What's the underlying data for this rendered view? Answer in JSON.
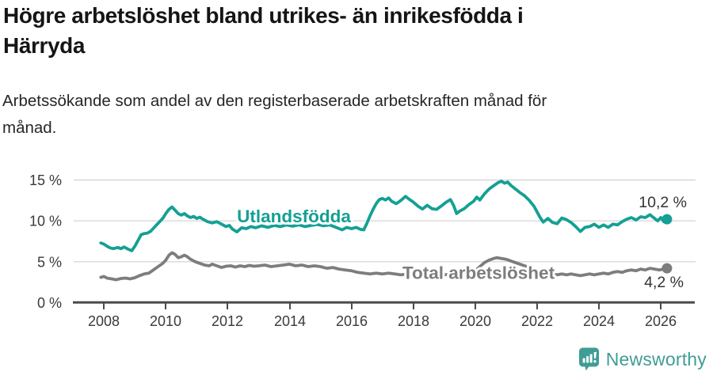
{
  "header": {
    "title": "Högre arbetslöshet bland utrikes- än inrikesfödda i\nHärryda",
    "subtitle": "Arbetssökande som andel av den registerbaserade arbetskraften månad för\nmånad."
  },
  "footer": {
    "brand": "Newsworthy",
    "brand_color": "#3f9d95",
    "logo_icon": "newsworthy-speech-bubble-bar-chart-icon"
  },
  "chart_data": {
    "type": "line",
    "title": "Högre arbetslöshet bland utrikes- än inrikesfödda i Härryda",
    "subtitle": "Arbetssökande som andel av den registerbaserade arbetskraften månad för månad.",
    "unit": "%",
    "xlabel": "",
    "ylabel": "",
    "xlim": [
      2007.0,
      2027.1
    ],
    "ylim": [
      0,
      15
    ],
    "grid": "horizontal",
    "legend_position": "inline-labels",
    "x_ticks": [
      2008,
      2010,
      2012,
      2014,
      2016,
      2018,
      2020,
      2022,
      2024,
      2026
    ],
    "x_tick_labels": [
      "2008",
      "2010",
      "2012",
      "2014",
      "2016",
      "2018",
      "2020",
      "2022",
      "2024",
      "2026"
    ],
    "y_ticks": [
      0,
      5,
      10,
      15
    ],
    "y_tick_labels": [
      "0 %",
      "5 %",
      "10 %",
      "15 %"
    ],
    "axis_color": "#4a4a4a",
    "gridline_color": "#d8d8d8",
    "series": [
      {
        "name": "Utlandsfödda",
        "color": "#14a094",
        "end_label": "10,2 %",
        "end_value": 10.2,
        "points": [
          [
            2007.9,
            7.3
          ],
          [
            2008.0,
            7.15
          ],
          [
            2008.1,
            6.9
          ],
          [
            2008.2,
            6.7
          ],
          [
            2008.3,
            6.6
          ],
          [
            2008.45,
            6.75
          ],
          [
            2008.55,
            6.6
          ],
          [
            2008.65,
            6.8
          ],
          [
            2008.8,
            6.5
          ],
          [
            2008.9,
            6.35
          ],
          [
            2009.0,
            6.9
          ],
          [
            2009.1,
            7.6
          ],
          [
            2009.2,
            8.3
          ],
          [
            2009.3,
            8.45
          ],
          [
            2009.4,
            8.5
          ],
          [
            2009.5,
            8.7
          ],
          [
            2009.6,
            9.1
          ],
          [
            2009.7,
            9.5
          ],
          [
            2009.8,
            9.9
          ],
          [
            2009.9,
            10.3
          ],
          [
            2010.0,
            10.9
          ],
          [
            2010.1,
            11.4
          ],
          [
            2010.2,
            11.7
          ],
          [
            2010.3,
            11.3
          ],
          [
            2010.4,
            10.9
          ],
          [
            2010.5,
            10.7
          ],
          [
            2010.6,
            10.9
          ],
          [
            2010.7,
            10.6
          ],
          [
            2010.8,
            10.4
          ],
          [
            2010.9,
            10.55
          ],
          [
            2011.0,
            10.3
          ],
          [
            2011.1,
            10.45
          ],
          [
            2011.2,
            10.2
          ],
          [
            2011.35,
            9.9
          ],
          [
            2011.5,
            9.75
          ],
          [
            2011.65,
            9.9
          ],
          [
            2011.8,
            9.6
          ],
          [
            2011.95,
            9.3
          ],
          [
            2012.05,
            9.45
          ],
          [
            2012.15,
            9.0
          ],
          [
            2012.3,
            8.65
          ],
          [
            2012.45,
            9.15
          ],
          [
            2012.6,
            9.05
          ],
          [
            2012.75,
            9.3
          ],
          [
            2012.9,
            9.15
          ],
          [
            2013.1,
            9.4
          ],
          [
            2013.3,
            9.2
          ],
          [
            2013.5,
            9.45
          ],
          [
            2013.7,
            9.3
          ],
          [
            2013.9,
            9.5
          ],
          [
            2014.1,
            9.35
          ],
          [
            2014.3,
            9.5
          ],
          [
            2014.5,
            9.3
          ],
          [
            2014.7,
            9.45
          ],
          [
            2014.9,
            9.55
          ],
          [
            2015.1,
            9.4
          ],
          [
            2015.3,
            9.5
          ],
          [
            2015.5,
            9.2
          ],
          [
            2015.7,
            8.9
          ],
          [
            2015.85,
            9.2
          ],
          [
            2016.0,
            9.05
          ],
          [
            2016.15,
            9.2
          ],
          [
            2016.3,
            8.95
          ],
          [
            2016.4,
            8.9
          ],
          [
            2016.5,
            9.7
          ],
          [
            2016.6,
            10.6
          ],
          [
            2016.7,
            11.4
          ],
          [
            2016.8,
            12.1
          ],
          [
            2016.9,
            12.6
          ],
          [
            2017.0,
            12.75
          ],
          [
            2017.1,
            12.55
          ],
          [
            2017.2,
            12.8
          ],
          [
            2017.3,
            12.4
          ],
          [
            2017.45,
            12.1
          ],
          [
            2017.6,
            12.5
          ],
          [
            2017.75,
            13.0
          ],
          [
            2017.85,
            12.7
          ],
          [
            2018.0,
            12.3
          ],
          [
            2018.15,
            11.8
          ],
          [
            2018.3,
            11.45
          ],
          [
            2018.45,
            11.9
          ],
          [
            2018.6,
            11.5
          ],
          [
            2018.75,
            11.4
          ],
          [
            2018.9,
            11.8
          ],
          [
            2019.05,
            12.25
          ],
          [
            2019.2,
            12.6
          ],
          [
            2019.3,
            11.9
          ],
          [
            2019.4,
            10.9
          ],
          [
            2019.5,
            11.2
          ],
          [
            2019.65,
            11.5
          ],
          [
            2019.8,
            12.0
          ],
          [
            2019.95,
            12.4
          ],
          [
            2020.05,
            12.9
          ],
          [
            2020.15,
            12.55
          ],
          [
            2020.3,
            13.3
          ],
          [
            2020.45,
            13.9
          ],
          [
            2020.6,
            14.3
          ],
          [
            2020.75,
            14.7
          ],
          [
            2020.85,
            14.85
          ],
          [
            2020.95,
            14.6
          ],
          [
            2021.05,
            14.75
          ],
          [
            2021.15,
            14.35
          ],
          [
            2021.3,
            13.9
          ],
          [
            2021.45,
            13.45
          ],
          [
            2021.6,
            13.05
          ],
          [
            2021.75,
            12.5
          ],
          [
            2021.9,
            11.8
          ],
          [
            2022.0,
            11.1
          ],
          [
            2022.1,
            10.4
          ],
          [
            2022.2,
            9.85
          ],
          [
            2022.35,
            10.3
          ],
          [
            2022.5,
            9.8
          ],
          [
            2022.65,
            9.65
          ],
          [
            2022.8,
            10.35
          ],
          [
            2022.95,
            10.15
          ],
          [
            2023.1,
            9.8
          ],
          [
            2023.25,
            9.3
          ],
          [
            2023.4,
            8.7
          ],
          [
            2023.55,
            9.2
          ],
          [
            2023.7,
            9.3
          ],
          [
            2023.85,
            9.6
          ],
          [
            2024.0,
            9.2
          ],
          [
            2024.15,
            9.5
          ],
          [
            2024.3,
            9.2
          ],
          [
            2024.45,
            9.6
          ],
          [
            2024.6,
            9.5
          ],
          [
            2024.75,
            9.9
          ],
          [
            2024.9,
            10.2
          ],
          [
            2025.05,
            10.4
          ],
          [
            2025.2,
            10.1
          ],
          [
            2025.35,
            10.5
          ],
          [
            2025.5,
            10.4
          ],
          [
            2025.65,
            10.75
          ],
          [
            2025.8,
            10.3
          ],
          [
            2025.9,
            10.0
          ],
          [
            2026.0,
            10.4
          ],
          [
            2026.1,
            9.9
          ],
          [
            2026.2,
            10.2
          ]
        ]
      },
      {
        "name": "Total arbetslöshet",
        "color": "#7d7d7d",
        "end_label": "4,2 %",
        "end_value": 4.2,
        "points": [
          [
            2007.9,
            3.1
          ],
          [
            2008.0,
            3.2
          ],
          [
            2008.1,
            3.0
          ],
          [
            2008.25,
            2.9
          ],
          [
            2008.4,
            2.8
          ],
          [
            2008.55,
            2.95
          ],
          [
            2008.7,
            3.0
          ],
          [
            2008.85,
            2.9
          ],
          [
            2009.0,
            3.05
          ],
          [
            2009.15,
            3.3
          ],
          [
            2009.3,
            3.5
          ],
          [
            2009.45,
            3.6
          ],
          [
            2009.6,
            4.0
          ],
          [
            2009.75,
            4.4
          ],
          [
            2009.9,
            4.8
          ],
          [
            2010.0,
            5.2
          ],
          [
            2010.1,
            5.8
          ],
          [
            2010.2,
            6.1
          ],
          [
            2010.3,
            5.9
          ],
          [
            2010.4,
            5.5
          ],
          [
            2010.5,
            5.6
          ],
          [
            2010.6,
            5.8
          ],
          [
            2010.7,
            5.6
          ],
          [
            2010.8,
            5.3
          ],
          [
            2010.95,
            5.0
          ],
          [
            2011.1,
            4.8
          ],
          [
            2011.25,
            4.6
          ],
          [
            2011.4,
            4.5
          ],
          [
            2011.5,
            4.7
          ],
          [
            2011.65,
            4.5
          ],
          [
            2011.8,
            4.3
          ],
          [
            2011.95,
            4.45
          ],
          [
            2012.1,
            4.5
          ],
          [
            2012.25,
            4.35
          ],
          [
            2012.4,
            4.5
          ],
          [
            2012.55,
            4.4
          ],
          [
            2012.7,
            4.55
          ],
          [
            2012.85,
            4.45
          ],
          [
            2013.0,
            4.5
          ],
          [
            2013.2,
            4.6
          ],
          [
            2013.4,
            4.4
          ],
          [
            2013.6,
            4.5
          ],
          [
            2013.8,
            4.6
          ],
          [
            2014.0,
            4.7
          ],
          [
            2014.2,
            4.5
          ],
          [
            2014.4,
            4.6
          ],
          [
            2014.6,
            4.4
          ],
          [
            2014.8,
            4.5
          ],
          [
            2015.0,
            4.4
          ],
          [
            2015.2,
            4.2
          ],
          [
            2015.4,
            4.3
          ],
          [
            2015.6,
            4.1
          ],
          [
            2015.8,
            4.0
          ],
          [
            2016.0,
            3.9
          ],
          [
            2016.2,
            3.7
          ],
          [
            2016.4,
            3.6
          ],
          [
            2016.6,
            3.5
          ],
          [
            2016.8,
            3.6
          ],
          [
            2017.0,
            3.5
          ],
          [
            2017.2,
            3.6
          ],
          [
            2017.4,
            3.5
          ],
          [
            2017.6,
            3.4
          ],
          [
            2017.8,
            3.5
          ],
          [
            2018.0,
            3.4
          ],
          [
            2018.25,
            3.5
          ],
          [
            2018.5,
            3.4
          ],
          [
            2018.75,
            3.5
          ],
          [
            2019.0,
            3.4
          ],
          [
            2019.25,
            3.5
          ],
          [
            2019.5,
            3.6
          ],
          [
            2019.75,
            3.7
          ],
          [
            2020.0,
            3.9
          ],
          [
            2020.15,
            4.4
          ],
          [
            2020.3,
            4.9
          ],
          [
            2020.45,
            5.2
          ],
          [
            2020.6,
            5.4
          ],
          [
            2020.7,
            5.5
          ],
          [
            2020.85,
            5.4
          ],
          [
            2021.0,
            5.3
          ],
          [
            2021.15,
            5.1
          ],
          [
            2021.3,
            4.9
          ],
          [
            2021.45,
            4.7
          ],
          [
            2021.6,
            4.5
          ],
          [
            2021.75,
            4.3
          ],
          [
            2021.9,
            4.1
          ],
          [
            2022.05,
            3.9
          ],
          [
            2022.2,
            3.8
          ],
          [
            2022.35,
            3.6
          ],
          [
            2022.5,
            3.5
          ],
          [
            2022.65,
            3.4
          ],
          [
            2022.8,
            3.5
          ],
          [
            2022.95,
            3.4
          ],
          [
            2023.1,
            3.5
          ],
          [
            2023.25,
            3.4
          ],
          [
            2023.4,
            3.3
          ],
          [
            2023.55,
            3.4
          ],
          [
            2023.7,
            3.5
          ],
          [
            2023.85,
            3.4
          ],
          [
            2024.0,
            3.5
          ],
          [
            2024.15,
            3.6
          ],
          [
            2024.3,
            3.5
          ],
          [
            2024.45,
            3.7
          ],
          [
            2024.6,
            3.8
          ],
          [
            2024.75,
            3.7
          ],
          [
            2024.9,
            3.9
          ],
          [
            2025.05,
            4.0
          ],
          [
            2025.2,
            3.9
          ],
          [
            2025.35,
            4.1
          ],
          [
            2025.5,
            4.0
          ],
          [
            2025.65,
            4.2
          ],
          [
            2025.8,
            4.1
          ],
          [
            2025.95,
            4.0
          ],
          [
            2026.1,
            4.1
          ],
          [
            2026.2,
            4.2
          ]
        ]
      }
    ]
  }
}
